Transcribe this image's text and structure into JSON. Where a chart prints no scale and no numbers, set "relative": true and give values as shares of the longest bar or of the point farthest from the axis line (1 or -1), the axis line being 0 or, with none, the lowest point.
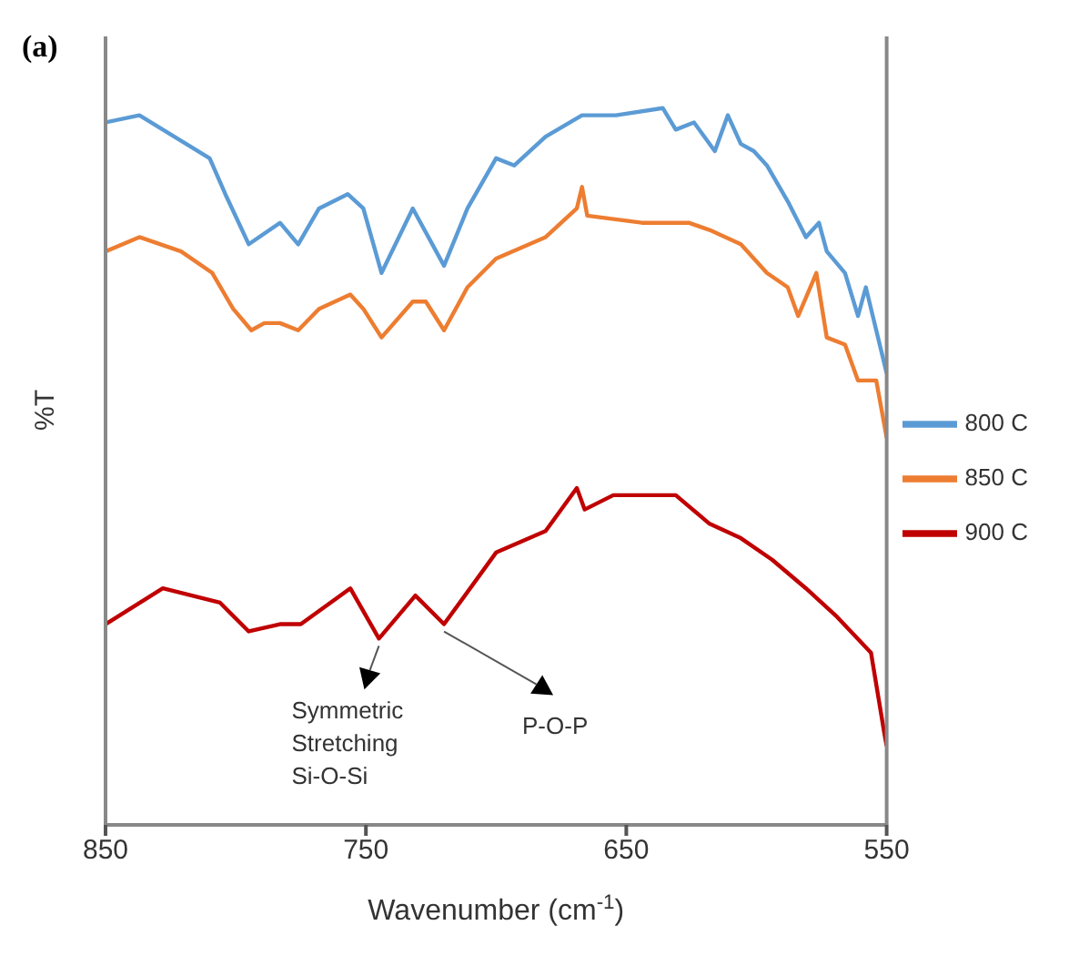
{
  "chart_data": {
    "type": "line",
    "title": "(a)",
    "xlabel": "Wavenumber (cm$^{-1}$)",
    "ylabel": "%T",
    "relative": true,
    "xlim": [
      850,
      550
    ],
    "xticks": [
      850,
      750,
      650,
      550
    ],
    "legend": "right",
    "marker": "none",
    "line_style": "solid",
    "annotations": [
      {
        "text": "Symmetric\nStretching\nSi-O-Si",
        "x": 745,
        "y": 0.26
      },
      {
        "text": "P-O-P",
        "x": 720,
        "y": 0.28
      }
    ],
    "series": [
      {
        "name": "800 C",
        "color": "#5b9bd5",
        "x": [
          850,
          837,
          819,
          810,
          804,
          795,
          783,
          776,
          768,
          757,
          751,
          744,
          732,
          720,
          711,
          700,
          693,
          681,
          667,
          654,
          636,
          631,
          624,
          616,
          611,
          606,
          601,
          596,
          588,
          581,
          576,
          573,
          566,
          561,
          558,
          554,
          550
        ],
        "values": [
          0.98,
          0.99,
          0.95,
          0.93,
          0.88,
          0.81,
          0.84,
          0.81,
          0.86,
          0.88,
          0.86,
          0.77,
          0.86,
          0.78,
          0.86,
          0.93,
          0.92,
          0.96,
          0.99,
          0.99,
          1,
          0.97,
          0.98,
          0.94,
          0.99,
          0.95,
          0.94,
          0.92,
          0.87,
          0.82,
          0.84,
          0.8,
          0.77,
          0.71,
          0.75,
          0.69,
          0.63
        ]
      },
      {
        "name": "850 C",
        "color": "#ed7d31",
        "x": [
          850,
          837,
          821,
          809,
          801,
          794,
          789,
          783,
          776,
          768,
          756,
          751,
          744,
          732,
          727,
          720,
          711,
          700,
          681,
          669,
          667,
          665,
          644,
          626,
          618,
          606,
          596,
          588,
          584,
          577,
          573,
          566,
          561,
          554,
          550
        ],
        "values": [
          0.8,
          0.82,
          0.8,
          0.77,
          0.72,
          0.69,
          0.7,
          0.7,
          0.69,
          0.72,
          0.74,
          0.72,
          0.68,
          0.73,
          0.73,
          0.69,
          0.75,
          0.79,
          0.82,
          0.86,
          0.89,
          0.85,
          0.84,
          0.84,
          0.83,
          0.81,
          0.77,
          0.75,
          0.71,
          0.77,
          0.68,
          0.67,
          0.62,
          0.62,
          0.54
        ]
      },
      {
        "name": "900 C",
        "color": "#c00000",
        "x": [
          850,
          828,
          806,
          795,
          783,
          775,
          756,
          745,
          731,
          720,
          700,
          681,
          669,
          666,
          655,
          631,
          618,
          606,
          594,
          581,
          569,
          556,
          551,
          550
        ],
        "values": [
          0.28,
          0.33,
          0.31,
          0.27,
          0.28,
          0.28,
          0.33,
          0.26,
          0.32,
          0.28,
          0.38,
          0.41,
          0.47,
          0.44,
          0.46,
          0.46,
          0.42,
          0.4,
          0.37,
          0.33,
          0.29,
          0.24,
          0.13,
          0.11
        ]
      }
    ]
  }
}
